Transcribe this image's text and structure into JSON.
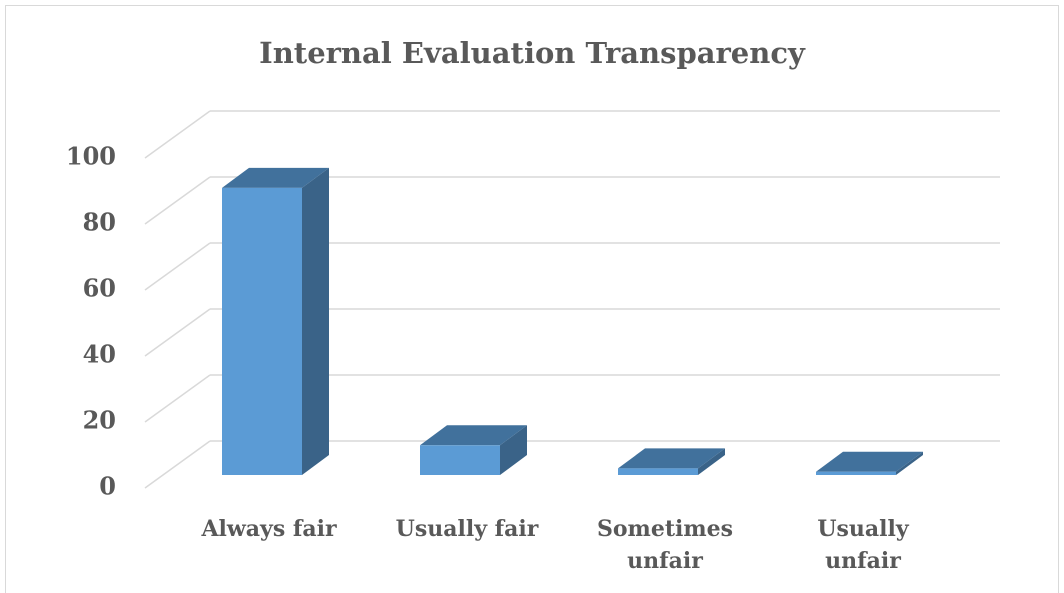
{
  "chart_data": {
    "type": "bar3d",
    "title": "Internal Evaluation Transparency",
    "categories": [
      "Always fair",
      "Usually fair",
      "Sometimes unfair",
      "Usually unfair"
    ],
    "values": [
      87,
      9,
      2,
      1
    ],
    "color": "#5b9bd5",
    "ylim": [
      0,
      100
    ],
    "yticks": [
      0,
      20,
      40,
      60,
      80,
      100
    ],
    "grid": true
  }
}
